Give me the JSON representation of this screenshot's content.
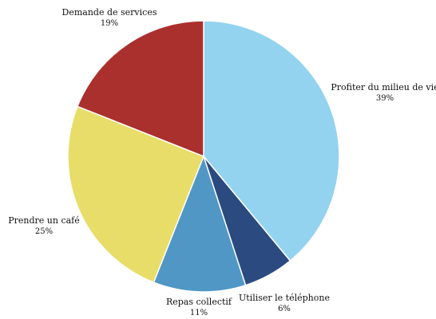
{
  "chart_data": {
    "type": "pie",
    "slices": [
      {
        "label": "Profiter du milieu de vie",
        "value": 39,
        "value_label": "39%",
        "color": "#93d3ef"
      },
      {
        "label": "Utiliser le téléphone",
        "value": 6,
        "value_label": "6%",
        "color": "#2a4a80"
      },
      {
        "label": "Repas collectif",
        "value": 11,
        "value_label": "11%",
        "color": "#5097c6"
      },
      {
        "label": "Prendre un café",
        "value": 25,
        "value_label": "25%",
        "color": "#e7dd68"
      },
      {
        "label": "Demande de services",
        "value": 19,
        "value_label": "19%",
        "color": "#aa302e"
      }
    ],
    "start_angle": "12 o'clock",
    "direction": "clockwise",
    "legend": "none"
  }
}
